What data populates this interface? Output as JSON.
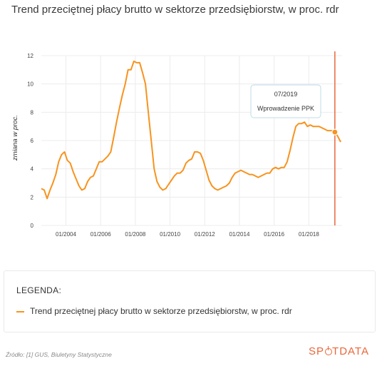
{
  "page": {
    "title": "Trend przeciętnej płacy brutto w sektorze przedsiębiorstw, w proc. rdr",
    "source": "Źródło: [1] GUS, Biuletyny Statystyczne",
    "logo_before": "SP",
    "logo_after": "TDATA",
    "logo_mark": "power-icon"
  },
  "legend": {
    "heading": "LEGENDA:",
    "item_label": "Trend przeciętnej płacy brutto w sektorze przedsiębiorstw, w proc. rdr"
  },
  "colors": {
    "line": "#f7931e",
    "marker": "#e9673a",
    "grid": "#ececec",
    "tooltip_border": "#bcdcea",
    "tooltip_bg": "#ffffff",
    "logo": "#e9673a"
  },
  "chart_data": {
    "type": "line",
    "xlabel": "",
    "ylabel": "zmiana w proc.",
    "ylim": [
      0,
      12
    ],
    "y_ticks": [
      0,
      2,
      4,
      6,
      8,
      10,
      12
    ],
    "x_range": [
      "2002-08",
      "2019-12"
    ],
    "x_ticks": [
      "01/2004",
      "01/2006",
      "01/2008",
      "01/2010",
      "01/2012",
      "01/2014",
      "01/2016",
      "01/2018"
    ],
    "grid": true,
    "legend": "bottom",
    "series": [
      {
        "name": "Trend przeciętnej płacy brutto w sektorze przedsiębiorstw, w proc. rdr",
        "points": [
          [
            "2002-08",
            2.6
          ],
          [
            "2002-10",
            2.5
          ],
          [
            "2002-12",
            1.9
          ],
          [
            "2003-02",
            2.5
          ],
          [
            "2003-04",
            3.0
          ],
          [
            "2003-06",
            3.6
          ],
          [
            "2003-08",
            4.5
          ],
          [
            "2003-10",
            5.0
          ],
          [
            "2003-12",
            5.2
          ],
          [
            "2004-02",
            4.6
          ],
          [
            "2004-04",
            4.4
          ],
          [
            "2004-06",
            3.8
          ],
          [
            "2004-08",
            3.3
          ],
          [
            "2004-10",
            2.8
          ],
          [
            "2004-12",
            2.5
          ],
          [
            "2005-02",
            2.6
          ],
          [
            "2005-04",
            3.1
          ],
          [
            "2005-06",
            3.4
          ],
          [
            "2005-08",
            3.5
          ],
          [
            "2005-10",
            4.0
          ],
          [
            "2005-12",
            4.5
          ],
          [
            "2006-02",
            4.5
          ],
          [
            "2006-04",
            4.7
          ],
          [
            "2006-06",
            4.9
          ],
          [
            "2006-08",
            5.2
          ],
          [
            "2006-10",
            6.2
          ],
          [
            "2006-12",
            7.3
          ],
          [
            "2007-02",
            8.3
          ],
          [
            "2007-04",
            9.2
          ],
          [
            "2007-06",
            10.0
          ],
          [
            "2007-08",
            11.0
          ],
          [
            "2007-10",
            11.0
          ],
          [
            "2007-12",
            11.6
          ],
          [
            "2008-02",
            11.5
          ],
          [
            "2008-04",
            11.5
          ],
          [
            "2008-06",
            10.8
          ],
          [
            "2008-08",
            10.0
          ],
          [
            "2008-10",
            8.0
          ],
          [
            "2008-12",
            6.0
          ],
          [
            "2009-02",
            4.0
          ],
          [
            "2009-04",
            3.1
          ],
          [
            "2009-06",
            2.7
          ],
          [
            "2009-08",
            2.5
          ],
          [
            "2009-10",
            2.6
          ],
          [
            "2009-12",
            2.9
          ],
          [
            "2010-02",
            3.2
          ],
          [
            "2010-04",
            3.5
          ],
          [
            "2010-06",
            3.7
          ],
          [
            "2010-08",
            3.7
          ],
          [
            "2010-10",
            3.9
          ],
          [
            "2010-12",
            4.4
          ],
          [
            "2011-02",
            4.6
          ],
          [
            "2011-04",
            4.7
          ],
          [
            "2011-06",
            5.2
          ],
          [
            "2011-08",
            5.2
          ],
          [
            "2011-10",
            5.1
          ],
          [
            "2011-12",
            4.6
          ],
          [
            "2012-02",
            3.9
          ],
          [
            "2012-04",
            3.2
          ],
          [
            "2012-06",
            2.8
          ],
          [
            "2012-08",
            2.6
          ],
          [
            "2012-10",
            2.5
          ],
          [
            "2012-12",
            2.6
          ],
          [
            "2013-02",
            2.7
          ],
          [
            "2013-04",
            2.8
          ],
          [
            "2013-06",
            3.0
          ],
          [
            "2013-08",
            3.4
          ],
          [
            "2013-10",
            3.7
          ],
          [
            "2013-12",
            3.8
          ],
          [
            "2014-02",
            3.9
          ],
          [
            "2014-04",
            3.8
          ],
          [
            "2014-06",
            3.7
          ],
          [
            "2014-08",
            3.6
          ],
          [
            "2014-10",
            3.6
          ],
          [
            "2014-12",
            3.5
          ],
          [
            "2015-02",
            3.4
          ],
          [
            "2015-04",
            3.5
          ],
          [
            "2015-06",
            3.6
          ],
          [
            "2015-08",
            3.7
          ],
          [
            "2015-10",
            3.7
          ],
          [
            "2015-12",
            4.0
          ],
          [
            "2016-02",
            4.1
          ],
          [
            "2016-04",
            4.0
          ],
          [
            "2016-06",
            4.1
          ],
          [
            "2016-08",
            4.1
          ],
          [
            "2016-10",
            4.5
          ],
          [
            "2016-12",
            5.3
          ],
          [
            "2017-02",
            6.2
          ],
          [
            "2017-04",
            7.0
          ],
          [
            "2017-06",
            7.2
          ],
          [
            "2017-08",
            7.2
          ],
          [
            "2017-10",
            7.3
          ],
          [
            "2017-12",
            7.0
          ],
          [
            "2018-02",
            7.1
          ],
          [
            "2018-04",
            7.0
          ],
          [
            "2018-06",
            7.0
          ],
          [
            "2018-08",
            7.0
          ],
          [
            "2018-10",
            6.9
          ],
          [
            "2018-12",
            6.8
          ],
          [
            "2019-02",
            6.7
          ],
          [
            "2019-04",
            6.7
          ],
          [
            "2019-06",
            6.7
          ],
          [
            "2019-07",
            6.6
          ],
          [
            "2019-09",
            6.3
          ],
          [
            "2019-11",
            5.9
          ]
        ]
      }
    ],
    "annotations": [
      {
        "x": "2019-07",
        "y": 6.6,
        "label_date": "07/2019",
        "label_text": "Wprowadzenie PPK",
        "vertical_line": true
      }
    ]
  }
}
